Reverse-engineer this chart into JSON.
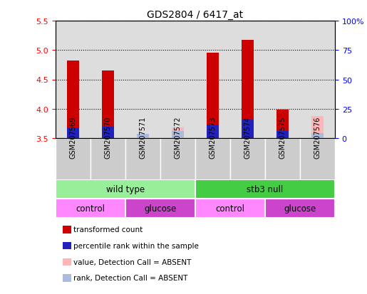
{
  "title": "GDS2804 / 6417_at",
  "samples": [
    "GSM207569",
    "GSM207570",
    "GSM207571",
    "GSM207572",
    "GSM207573",
    "GSM207574",
    "GSM207575",
    "GSM207576"
  ],
  "red_values": [
    4.82,
    4.65,
    3.52,
    3.5,
    4.95,
    5.17,
    3.99,
    3.5
  ],
  "blue_values": [
    3.68,
    3.69,
    3.5,
    3.5,
    3.73,
    3.82,
    3.62,
    3.55
  ],
  "absent": [
    false,
    false,
    true,
    true,
    false,
    false,
    false,
    true
  ],
  "pink_tops": [
    3.5,
    3.5,
    3.52,
    3.68,
    3.5,
    3.5,
    3.5,
    3.88
  ],
  "lightblue_tops": [
    3.5,
    3.5,
    3.57,
    3.62,
    3.5,
    3.5,
    3.5,
    3.58
  ],
  "ylim_left": [
    3.5,
    5.5
  ],
  "ylim_right": [
    0,
    100
  ],
  "yticks_left": [
    3.5,
    4.0,
    4.5,
    5.0,
    5.5
  ],
  "yticks_right": [
    0,
    25,
    50,
    75,
    100
  ],
  "bar_width": 0.35,
  "plot_bg": "#DDDDDD",
  "fig_bg": "#FFFFFF",
  "red_color": "#CC0000",
  "blue_color": "#2222BB",
  "pink_color": "#FFB6B6",
  "lightblue_color": "#AABBDD",
  "grid_color": "black",
  "left_axis_color": "red",
  "right_axis_color": "blue",
  "sample_row_bg": "#CCCCCC",
  "genotype_groups": [
    {
      "label": "wild type",
      "start": 0,
      "end": 4,
      "color": "#99EE99"
    },
    {
      "label": "stb3 null",
      "start": 4,
      "end": 8,
      "color": "#44CC44"
    }
  ],
  "growth_groups": [
    {
      "label": "control",
      "start": 0,
      "end": 2,
      "color": "#FF88FF"
    },
    {
      "label": "glucose",
      "start": 2,
      "end": 4,
      "color": "#CC44CC"
    },
    {
      "label": "control",
      "start": 4,
      "end": 6,
      "color": "#FF88FF"
    },
    {
      "label": "glucose",
      "start": 6,
      "end": 8,
      "color": "#CC44CC"
    }
  ],
  "legend_items": [
    {
      "color": "#CC0000",
      "label": "transformed count"
    },
    {
      "color": "#2222BB",
      "label": "percentile rank within the sample"
    },
    {
      "color": "#FFB6B6",
      "label": "value, Detection Call = ABSENT"
    },
    {
      "color": "#AABBDD",
      "label": "rank, Detection Call = ABSENT"
    }
  ]
}
